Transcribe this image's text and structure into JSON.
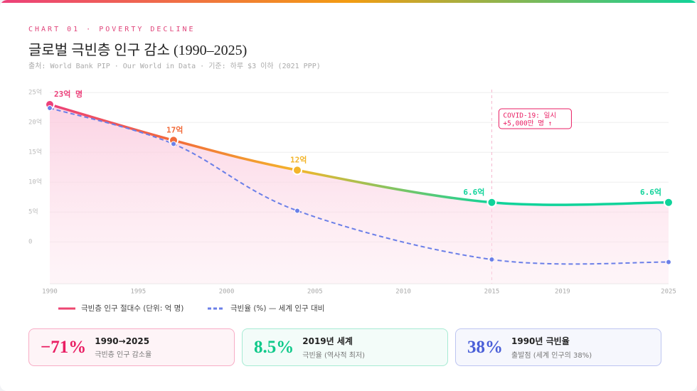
{
  "header": {
    "eyebrow": "CHART 01 · POVERTY DECLINE",
    "title": "글로벌 극빈층 인구 감소 (1990–2025)",
    "source": "출처: World Bank PIP · Our World in Data · 기준: 하루 $3 이하 (2021 PPP)"
  },
  "chart_data": {
    "type": "line",
    "x": [
      1990,
      1997,
      2004,
      2015,
      2025
    ],
    "xlim": [
      1990,
      2025
    ],
    "xticks": [
      1990,
      1995,
      2000,
      2005,
      2010,
      2015,
      2019,
      2025
    ],
    "ylim": [
      -7,
      25.5
    ],
    "yticks": [
      0,
      {
        "value": 5,
        "label": "5억"
      },
      {
        "value": 10,
        "label": "10억"
      },
      {
        "value": 15,
        "label": "15억"
      },
      {
        "value": 20,
        "label": "20억"
      },
      {
        "value": 25,
        "label": "25억"
      }
    ],
    "y2lim": [
      3.8,
      41.6
    ],
    "grid": true,
    "series": [
      {
        "name": "극빈층 인구 절대수 (단위: 억 명)",
        "color": "#ec407a",
        "colors": [
          "#ec407a",
          "#f26b3a",
          "#f3b52a",
          "#10d39a",
          "#10d39a"
        ],
        "values": [
          23,
          17,
          12,
          6.6,
          6.6
        ],
        "value_labels": [
          "23억 명",
          "17억",
          "12억",
          "6.6억",
          "6.6억"
        ]
      },
      {
        "name": "극빈율 (%) — 세계 인구 대비",
        "color": "#6b7fe8",
        "axis": "y2",
        "dashed": true,
        "values": [
          38,
          31,
          18,
          8.5,
          8
        ]
      }
    ],
    "annotation": {
      "x": 2015,
      "lines": [
        "COVID-19: 일시",
        "+5,000만 명 ↑"
      ]
    }
  },
  "cards": [
    {
      "value": "−71%",
      "title": "1990→2025",
      "desc": "극빈층 인구 감소율",
      "color": "#e91e63"
    },
    {
      "value": "8.5%",
      "title": "2019년 세계",
      "desc": "극빈율 (역사적 최저)",
      "color": "#10c98a"
    },
    {
      "value": "38%",
      "title": "1990년 극빈율",
      "desc": "출발점 (세계 인구의 38%)",
      "color": "#4a5fd8"
    }
  ]
}
